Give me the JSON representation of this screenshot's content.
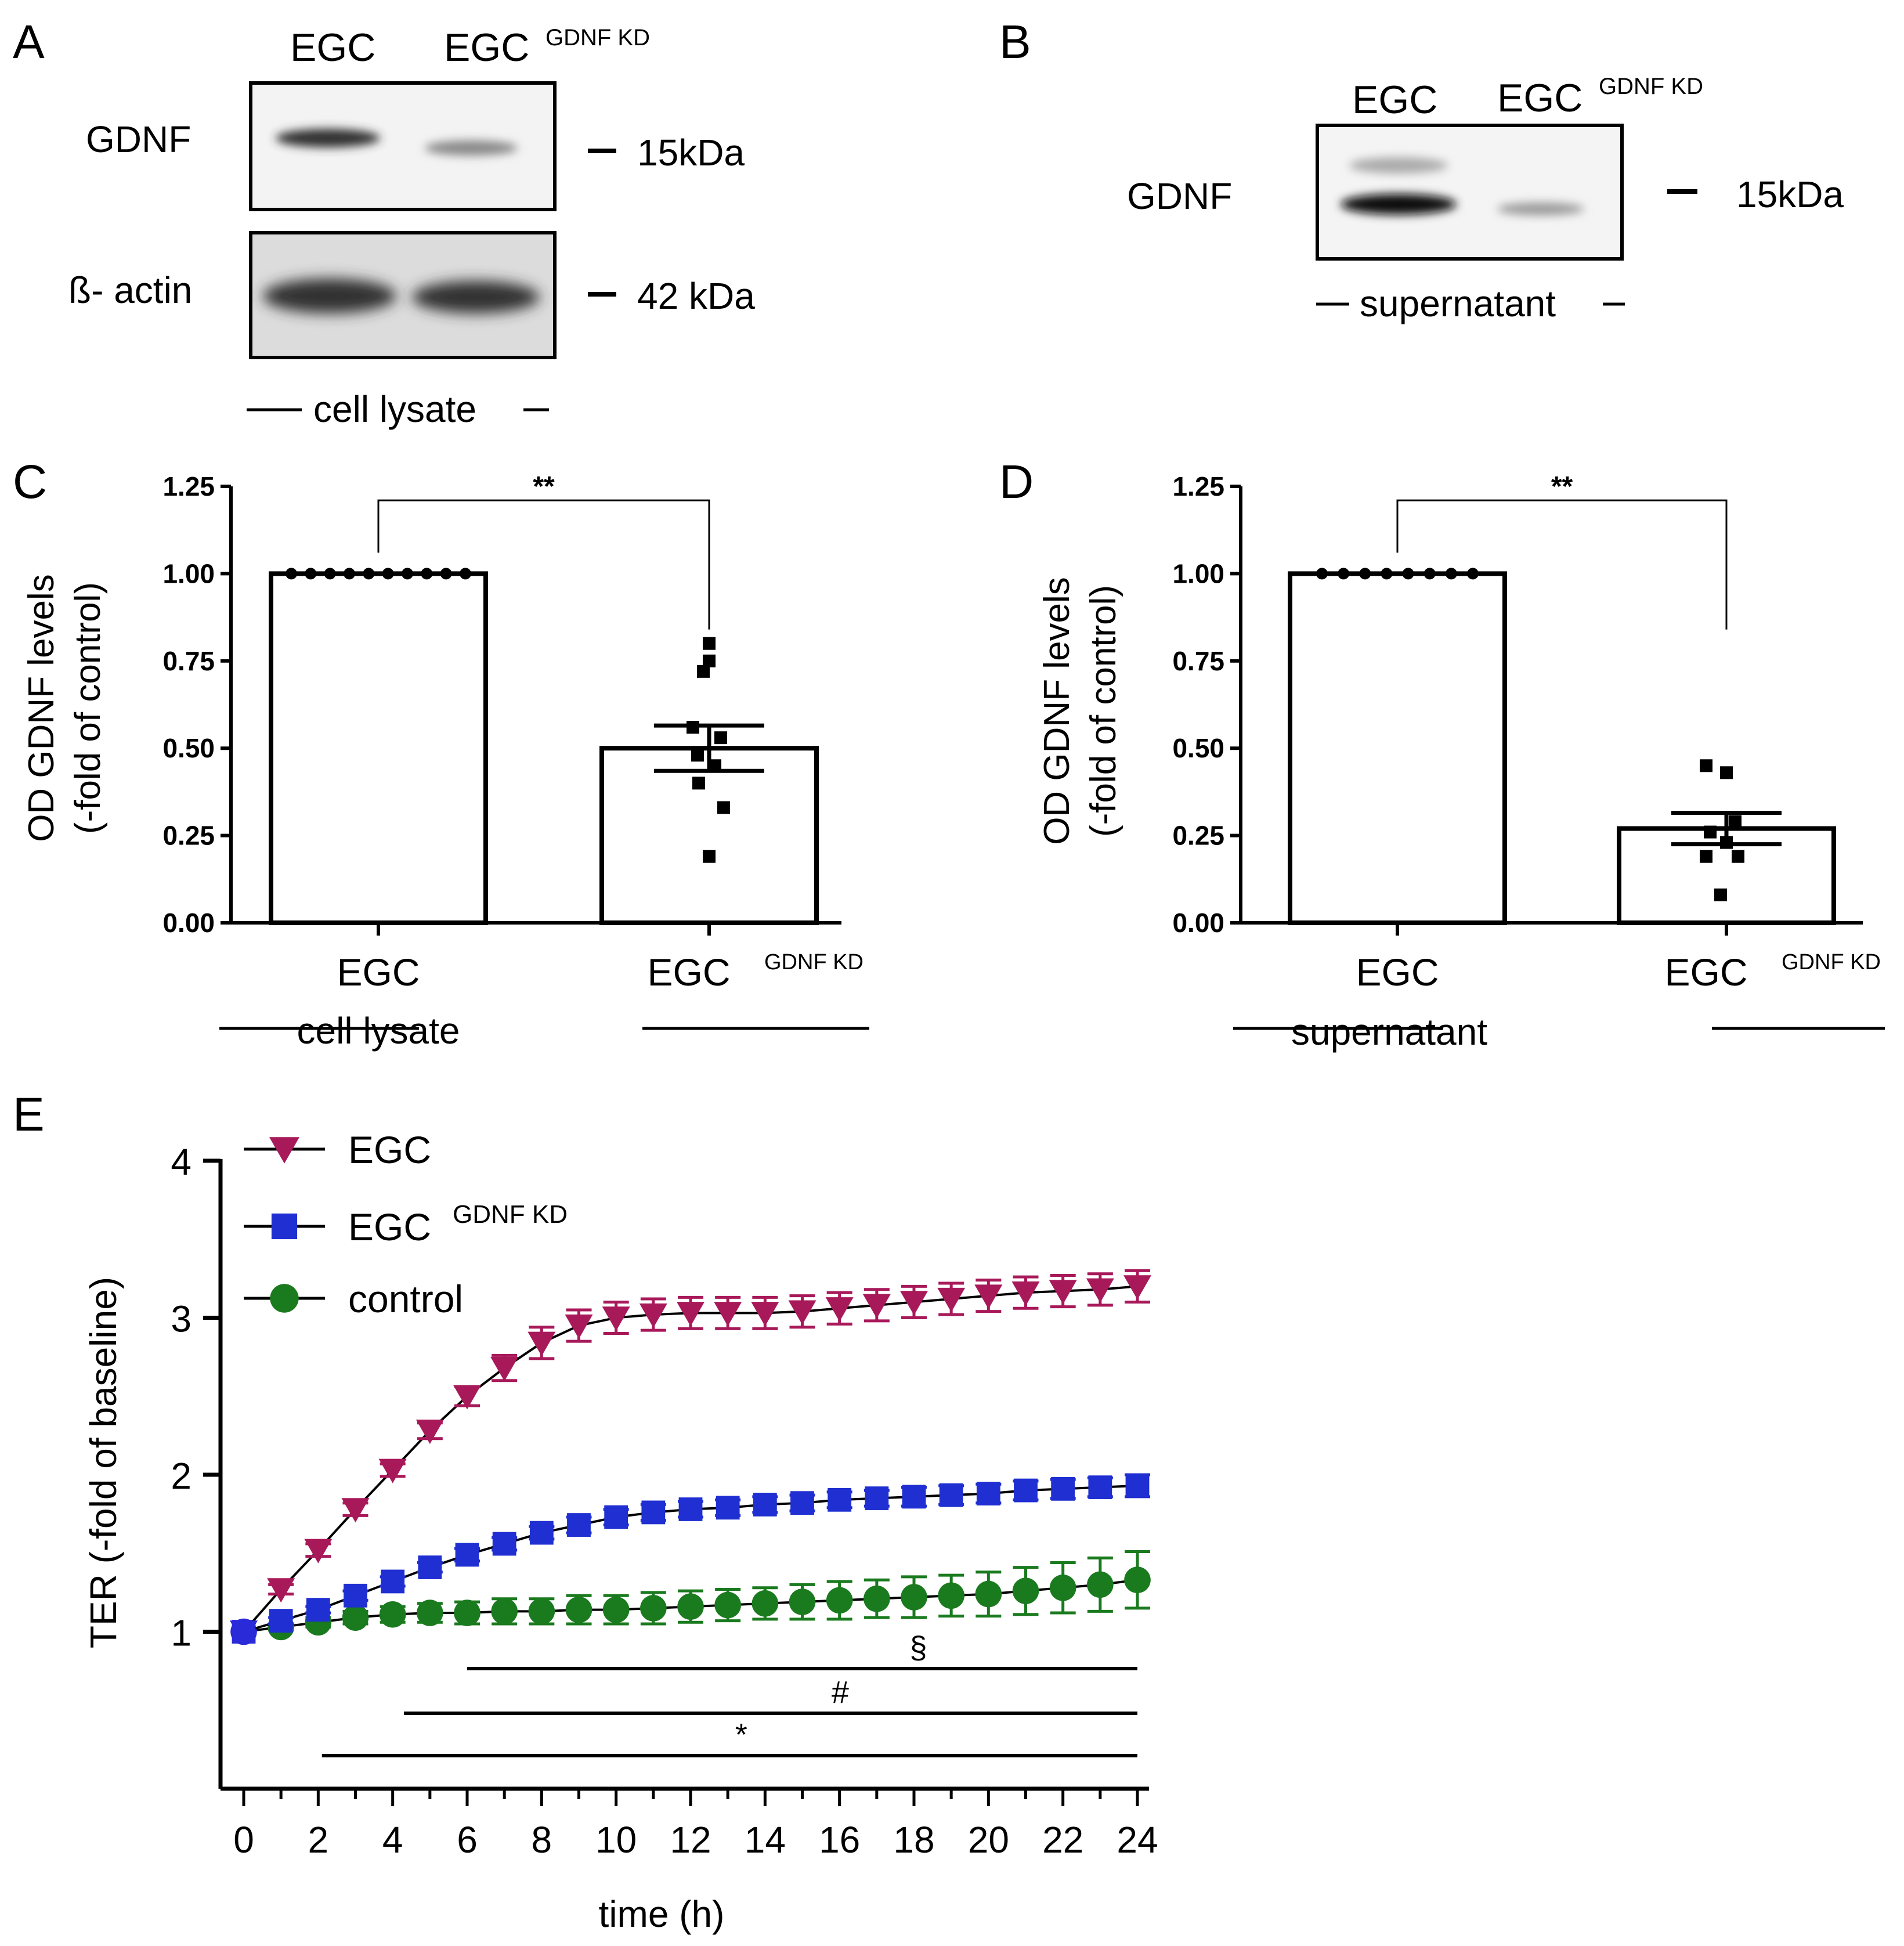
{
  "panelA": {
    "letter": "A",
    "lane1": "EGC",
    "lane2": "EGC",
    "lane2_sup": "GDNF KD",
    "row1_label": "GDNF",
    "row1_marker": "15kDa",
    "row2_label": "ß- actin",
    "row2_marker": "42 kDa",
    "footer": "cell lysate"
  },
  "panelB": {
    "letter": "B",
    "lane1": "EGC",
    "lane2": "EGC",
    "lane2_sup": "GDNF KD",
    "row_label": "GDNF",
    "marker": "15kDa",
    "footer": "supernatant"
  },
  "chart_data": [
    {
      "panel": "C",
      "type": "bar",
      "ylabel_line1": "OD GDNF levels",
      "ylabel_line2": "(-fold of control)",
      "ylim": [
        0,
        1.25
      ],
      "yticks": [
        "0.00",
        "0.25",
        "0.50",
        "0.75",
        "1.00",
        "1.25"
      ],
      "categories": [
        "EGC",
        "EGC"
      ],
      "category_sup": [
        "",
        "GDNF KD"
      ],
      "values": [
        1.0,
        0.5
      ],
      "errors": [
        0,
        0.065
      ],
      "points": [
        [
          1,
          1,
          1,
          1,
          1,
          1,
          1,
          1,
          1,
          1
        ],
        [
          0.8,
          0.75,
          0.72,
          0.56,
          0.53,
          0.48,
          0.45,
          0.4,
          0.33,
          0.19
        ]
      ],
      "significance": "**",
      "footer": "cell lysate"
    },
    {
      "panel": "D",
      "type": "bar",
      "ylabel_line1": "OD GDNF levels",
      "ylabel_line2": "(-fold of control)",
      "ylim": [
        0,
        1.25
      ],
      "yticks": [
        "0.00",
        "0.25",
        "0.50",
        "0.75",
        "1.00",
        "1.25"
      ],
      "categories": [
        "EGC",
        "EGC"
      ],
      "category_sup": [
        "",
        "GDNF KD"
      ],
      "values": [
        1.0,
        0.27
      ],
      "errors": [
        0,
        0.045
      ],
      "points": [
        [
          1,
          1,
          1,
          1,
          1,
          1,
          1,
          1
        ],
        [
          0.45,
          0.43,
          0.29,
          0.26,
          0.23,
          0.19,
          0.19,
          0.08
        ]
      ],
      "significance": "**",
      "footer": "supernatant"
    },
    {
      "panel": "E",
      "type": "line",
      "xlabel": "time (h)",
      "ylabel": "TER (-fold of baseline)",
      "xlim": [
        0,
        24
      ],
      "ylim": [
        0,
        4
      ],
      "xticks": [
        "0",
        "2",
        "4",
        "6",
        "8",
        "10",
        "12",
        "14",
        "16",
        "18",
        "20",
        "22",
        "24"
      ],
      "yticks": [
        "1",
        "2",
        "3",
        "4"
      ],
      "x": [
        0,
        1,
        2,
        3,
        4,
        5,
        6,
        7,
        8,
        9,
        10,
        11,
        12,
        13,
        14,
        15,
        16,
        17,
        18,
        19,
        20,
        21,
        22,
        23,
        24
      ],
      "series": [
        {
          "name": "EGC",
          "name_sup": "",
          "color": "#a8195a",
          "marker": "triangle-down",
          "values": [
            1.0,
            1.27,
            1.52,
            1.78,
            2.03,
            2.28,
            2.5,
            2.68,
            2.84,
            2.95,
            3.0,
            3.02,
            3.03,
            3.03,
            3.03,
            3.04,
            3.06,
            3.08,
            3.1,
            3.12,
            3.14,
            3.16,
            3.17,
            3.18,
            3.2
          ],
          "errors": [
            0.01,
            0.03,
            0.04,
            0.04,
            0.04,
            0.05,
            0.06,
            0.08,
            0.1,
            0.1,
            0.1,
            0.1,
            0.1,
            0.1,
            0.1,
            0.1,
            0.1,
            0.1,
            0.1,
            0.1,
            0.1,
            0.1,
            0.1,
            0.1,
            0.1
          ]
        },
        {
          "name": "EGC",
          "name_sup": "GDNF KD",
          "color": "#1f2fd1",
          "marker": "square",
          "values": [
            1.0,
            1.07,
            1.14,
            1.23,
            1.32,
            1.41,
            1.49,
            1.56,
            1.63,
            1.68,
            1.73,
            1.76,
            1.78,
            1.79,
            1.81,
            1.82,
            1.84,
            1.85,
            1.86,
            1.87,
            1.88,
            1.9,
            1.91,
            1.92,
            1.93
          ],
          "errors": [
            0.01,
            0.02,
            0.02,
            0.03,
            0.03,
            0.03,
            0.04,
            0.04,
            0.04,
            0.05,
            0.05,
            0.05,
            0.05,
            0.05,
            0.05,
            0.05,
            0.05,
            0.05,
            0.06,
            0.06,
            0.06,
            0.06,
            0.06,
            0.06,
            0.07
          ]
        },
        {
          "name": "control",
          "name_sup": "",
          "color": "#1a7a1e",
          "marker": "circle",
          "values": [
            1.0,
            1.03,
            1.06,
            1.09,
            1.11,
            1.12,
            1.12,
            1.13,
            1.13,
            1.14,
            1.14,
            1.15,
            1.16,
            1.17,
            1.18,
            1.19,
            1.2,
            1.21,
            1.22,
            1.23,
            1.24,
            1.26,
            1.28,
            1.3,
            1.33
          ],
          "errors": [
            0.0,
            0.02,
            0.03,
            0.04,
            0.05,
            0.06,
            0.07,
            0.08,
            0.08,
            0.09,
            0.09,
            0.1,
            0.1,
            0.1,
            0.1,
            0.11,
            0.12,
            0.12,
            0.13,
            0.13,
            0.14,
            0.15,
            0.16,
            0.17,
            0.18
          ]
        }
      ],
      "sig_bars": [
        {
          "symbol": "§",
          "x_start": 6,
          "x_end": 24
        },
        {
          "symbol": "#",
          "x_start": 4.3,
          "x_end": 24
        },
        {
          "symbol": "*",
          "x_start": 2.1,
          "x_end": 24
        }
      ]
    }
  ]
}
